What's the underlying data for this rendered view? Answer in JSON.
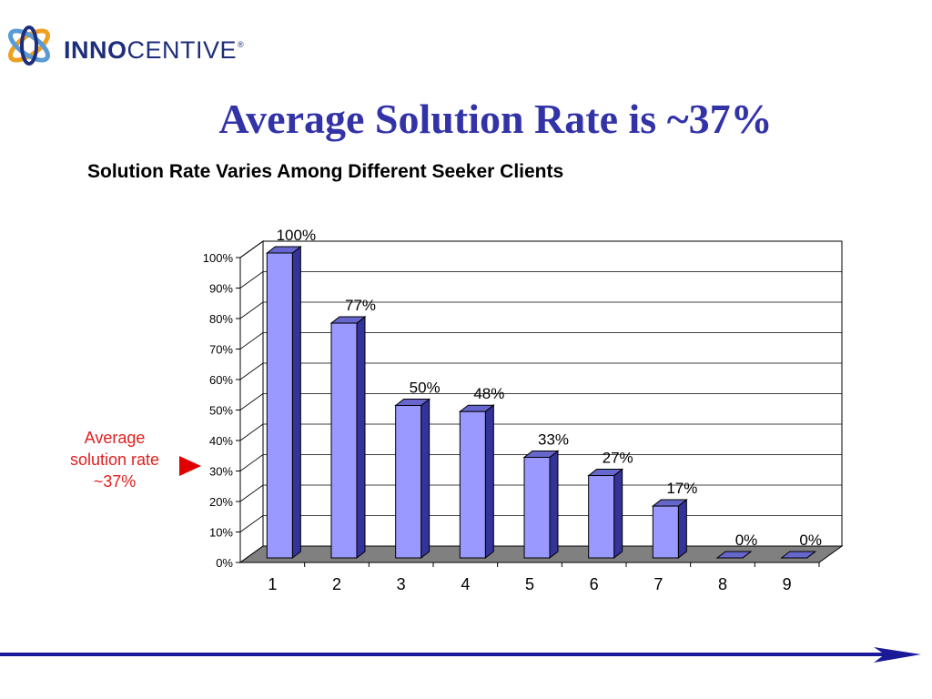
{
  "logo": {
    "text_bold": "INNO",
    "text_regular": "CENTIVE",
    "registered": "®"
  },
  "slide": {
    "title": "Average Solution Rate is ~37%",
    "subtitle": "Solution Rate Varies Among Different Seeker Clients"
  },
  "annotation": {
    "line1": "Average",
    "line2": "solution rate",
    "line3": "~37%"
  },
  "colors": {
    "bar_front": "#9999ff",
    "bar_side": "#333399",
    "title": "#3333a8",
    "annotation": "#e02020",
    "rule": "#1a1a99"
  },
  "chart_data": {
    "type": "bar",
    "categories": [
      "1",
      "2",
      "3",
      "4",
      "5",
      "6",
      "7",
      "8",
      "9"
    ],
    "values": [
      100,
      77,
      50,
      48,
      33,
      27,
      17,
      0,
      0
    ],
    "data_labels": [
      "100%",
      "77%",
      "50%",
      "48%",
      "33%",
      "27%",
      "17%",
      "0%",
      "0%"
    ],
    "y_ticks": [
      "0%",
      "10%",
      "20%",
      "30%",
      "40%",
      "50%",
      "60%",
      "70%",
      "80%",
      "90%",
      "100%"
    ],
    "ylim": [
      0,
      100
    ],
    "grid": true,
    "legend": "none",
    "style": "3d"
  }
}
